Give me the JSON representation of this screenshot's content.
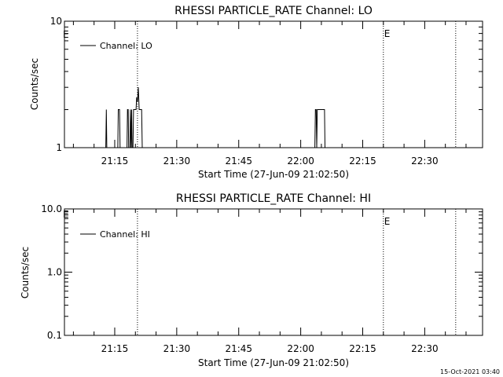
{
  "chart_data": [
    {
      "type": "line",
      "title": "RHESSI PARTICLE_RATE Channel: LO",
      "xlabel": "Start Time (27-Jun-09 21:02:50)",
      "ylabel": "Counts/sec",
      "y_scale": "log",
      "ylim": [
        1,
        10
      ],
      "xlim": [
        "21:02:50",
        "22:44:00"
      ],
      "x_ticks": [
        "21:15",
        "21:30",
        "21:45",
        "22:00",
        "22:15",
        "22:30"
      ],
      "y_ticks": [
        "1",
        "10"
      ],
      "event_markers": [
        {
          "time": "21:20:30",
          "label": ""
        },
        {
          "time": "22:20:00",
          "label": "E"
        },
        {
          "time": "22:37:30",
          "label": ""
        }
      ],
      "start_marker_label": "E",
      "legend": {
        "entries": [
          "Channel: LO"
        ],
        "placement": "top-left"
      },
      "series": [
        {
          "name": "Channel: LO",
          "points": [
            [
              "21:12:50",
              1
            ],
            [
              "21:12:58",
              2
            ],
            [
              "21:13:05",
              1
            ],
            [
              "21:15:45",
              1
            ],
            [
              "21:15:52",
              2
            ],
            [
              "21:16:10",
              2
            ],
            [
              "21:16:18",
              1
            ],
            [
              "21:17:58",
              1
            ],
            [
              "21:18:05",
              2
            ],
            [
              "21:18:15",
              2
            ],
            [
              "21:18:22",
              1
            ],
            [
              "21:18:40",
              1
            ],
            [
              "21:18:48",
              2
            ],
            [
              "21:18:58",
              1
            ],
            [
              "21:19:05",
              2
            ],
            [
              "21:19:12",
              1
            ],
            [
              "21:19:25",
              1
            ],
            [
              "21:19:33",
              2
            ],
            [
              "21:20:10",
              2
            ],
            [
              "21:20:18",
              2.5
            ],
            [
              "21:20:30",
              2.3
            ],
            [
              "21:20:42",
              3
            ],
            [
              "21:20:55",
              2
            ],
            [
              "21:21:30",
              2
            ],
            [
              "21:21:40",
              1
            ],
            [
              "22:03:25",
              1
            ],
            [
              "22:03:33",
              2
            ],
            [
              "22:03:45",
              2
            ],
            [
              "22:03:52",
              1
            ],
            [
              "22:04:00",
              2
            ],
            [
              "22:05:45",
              2
            ],
            [
              "22:05:52",
              1
            ]
          ]
        }
      ]
    },
    {
      "type": "line",
      "title": "RHESSI PARTICLE_RATE Channel: HI",
      "xlabel": "Start Time (27-Jun-09 21:02:50)",
      "ylabel": "Counts/sec",
      "y_scale": "log",
      "ylim": [
        0.1,
        10
      ],
      "xlim": [
        "21:02:50",
        "22:44:00"
      ],
      "x_ticks": [
        "21:15",
        "21:30",
        "21:45",
        "22:00",
        "22:15",
        "22:30"
      ],
      "y_ticks": [
        "0.1",
        "1.0",
        "10.0"
      ],
      "event_markers": [
        {
          "time": "21:20:30",
          "label": ""
        },
        {
          "time": "22:20:00",
          "label": "E"
        },
        {
          "time": "22:37:30",
          "label": ""
        }
      ],
      "start_marker_label": "E",
      "legend": {
        "entries": [
          "Channel: HI"
        ],
        "placement": "top-left"
      },
      "series": [
        {
          "name": "Channel: HI",
          "points": []
        }
      ]
    }
  ],
  "footer": {
    "timestamp": "15-Oct-2021 03:40"
  }
}
